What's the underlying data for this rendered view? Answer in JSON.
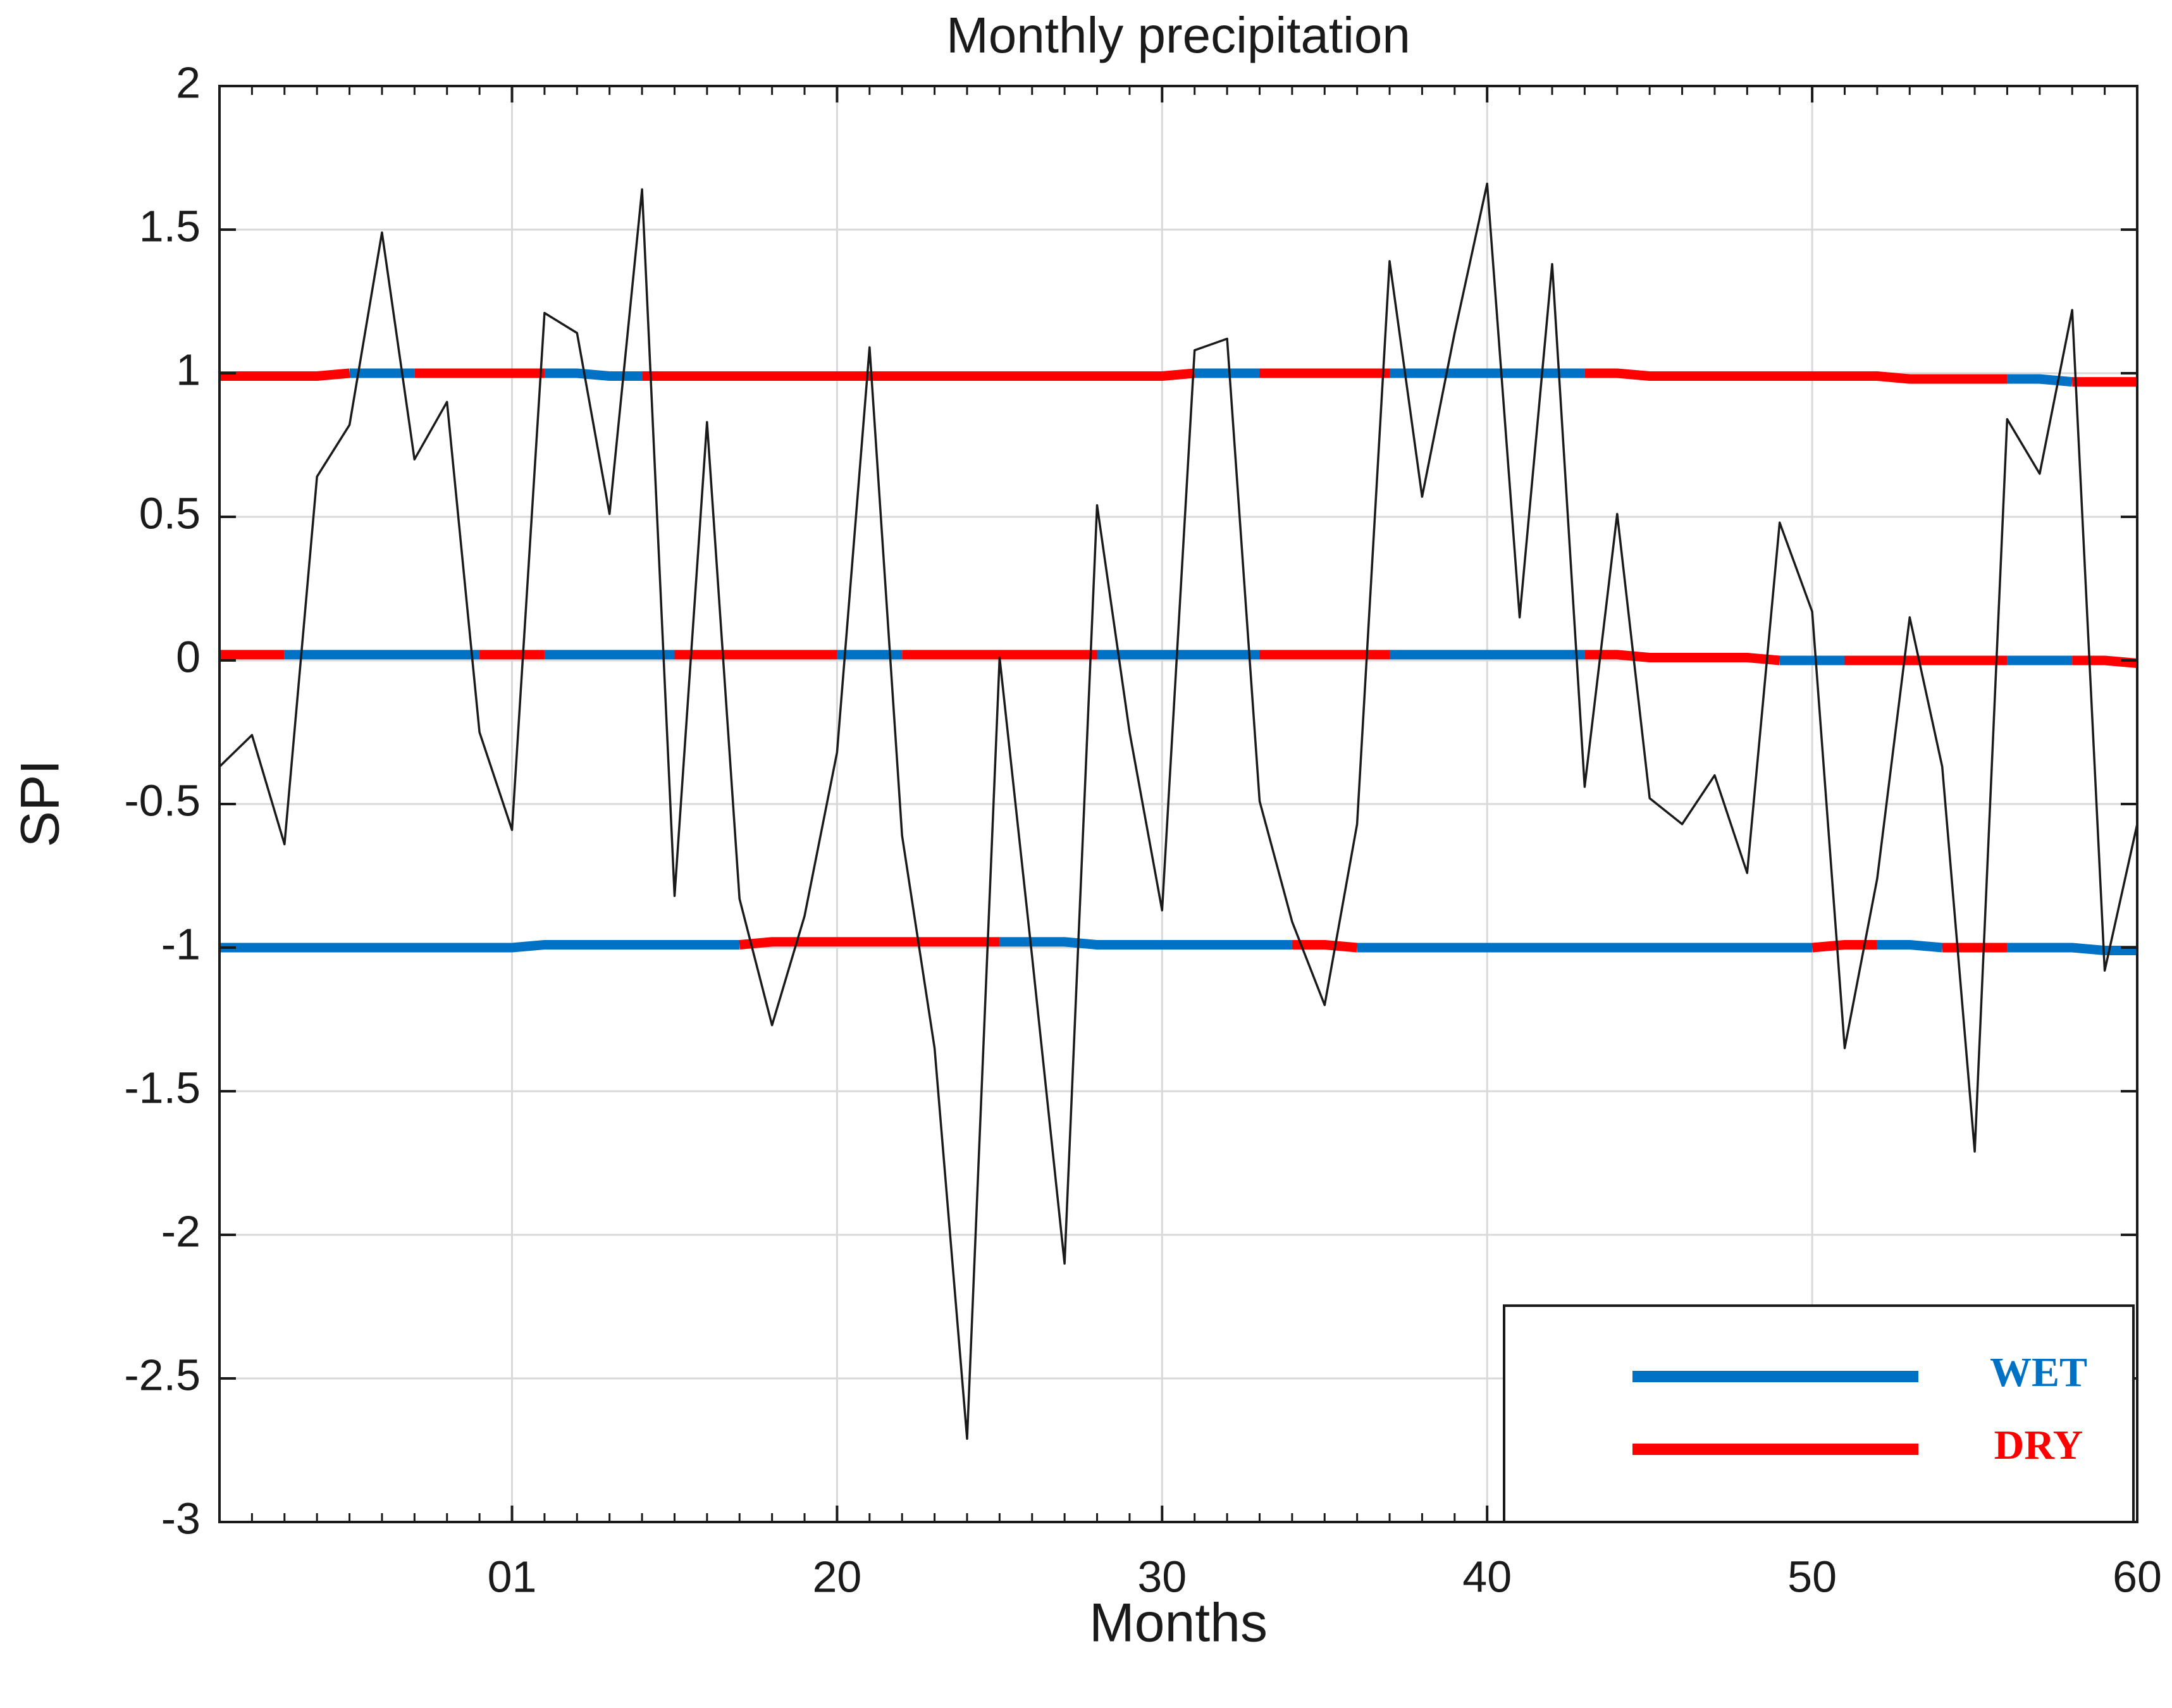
{
  "chart_data": {
    "type": "line",
    "title": "Monthly precipitation",
    "xlabel": "Months",
    "ylabel": "SPI",
    "x": [
      1,
      2,
      3,
      4,
      5,
      6,
      7,
      8,
      9,
      10,
      11,
      12,
      13,
      14,
      15,
      16,
      17,
      18,
      19,
      20,
      21,
      22,
      23,
      24,
      25,
      26,
      27,
      28,
      29,
      30,
      31,
      32,
      33,
      34,
      35,
      36,
      37,
      38,
      39,
      40,
      41,
      42,
      43,
      44,
      45,
      46,
      47,
      48,
      49,
      50,
      51,
      52,
      53,
      54,
      55,
      56,
      57,
      58,
      59,
      60
    ],
    "values": [
      -0.37,
      -0.26,
      -0.64,
      0.64,
      0.82,
      1.49,
      0.7,
      0.9,
      -0.25,
      -0.59,
      1.21,
      1.14,
      0.51,
      1.64,
      -0.82,
      0.83,
      -0.83,
      -1.27,
      -0.89,
      -0.32,
      1.09,
      -0.61,
      -1.35,
      -2.71,
      0.01,
      -1.03,
      -2.1,
      0.54,
      -0.25,
      -0.87,
      1.08,
      1.12,
      -0.49,
      -0.91,
      -1.2,
      -0.57,
      1.39,
      0.57,
      1.14,
      1.66,
      0.15,
      1.38,
      -0.44,
      0.51,
      -0.48,
      -0.57,
      -0.4,
      -0.74,
      0.48,
      0.17,
      -1.35,
      -0.76,
      0.15,
      -0.37,
      -1.71,
      0.84,
      0.65,
      1.22,
      -1.08,
      -0.57
    ],
    "color": "#1a1a1a",
    "series": [
      {
        "name": "WET",
        "color": "#0072c6",
        "values": [
          [
            null,
            null,
            null,
            null,
            1,
            1,
            1,
            null,
            null,
            null,
            1,
            1,
            0.99,
            0.99,
            null,
            null,
            null,
            null,
            null,
            null,
            null,
            null,
            null,
            null,
            null,
            null,
            null,
            null,
            null,
            null,
            1,
            1,
            1,
            null,
            null,
            null,
            1,
            1,
            1,
            1,
            1,
            1,
            1,
            null,
            null,
            null,
            null,
            null,
            null,
            null,
            null,
            null,
            null,
            null,
            null,
            0.98,
            0.98,
            0.97,
            null,
            null
          ],
          [
            null,
            null,
            0.02,
            0.02,
            0.02,
            0.02,
            0.02,
            0.02,
            0.02,
            null,
            0.02,
            0.02,
            0.02,
            0.02,
            0.02,
            null,
            null,
            null,
            null,
            0.02,
            0.02,
            0.02,
            null,
            null,
            null,
            null,
            null,
            0.02,
            0.02,
            0.02,
            0.02,
            0.02,
            0.02,
            null,
            null,
            null,
            0.02,
            0.02,
            0.02,
            0.02,
            0.02,
            0.02,
            0.02,
            null,
            null,
            null,
            null,
            null,
            0,
            0,
            0,
            null,
            null,
            null,
            null,
            0,
            0,
            0,
            null,
            null
          ],
          [
            -1,
            -1,
            -1,
            -1,
            -1,
            -1,
            -1,
            -1,
            -1,
            -1,
            -0.99,
            -0.99,
            -0.99,
            -0.99,
            -0.99,
            -0.99,
            -0.99,
            null,
            null,
            null,
            null,
            null,
            null,
            null,
            -0.98,
            -0.98,
            -0.98,
            -0.99,
            -0.99,
            -0.99,
            -0.99,
            -0.99,
            -0.99,
            -0.99,
            null,
            -1,
            -1,
            -1,
            -1,
            -1,
            -1,
            -1,
            -1,
            -1,
            -1,
            -1,
            -1,
            -1,
            -1,
            -1,
            null,
            -0.99,
            -0.99,
            -1,
            null,
            -1,
            -1,
            -1,
            -1.01,
            -1.01
          ]
        ]
      },
      {
        "name": "DRY",
        "color": "#ff0000",
        "values": [
          [
            0.99,
            0.99,
            0.99,
            0.99,
            1,
            null,
            1,
            1,
            1,
            1,
            1,
            null,
            null,
            0.99,
            0.99,
            0.99,
            0.99,
            0.99,
            0.99,
            0.99,
            0.99,
            0.99,
            0.99,
            0.99,
            0.99,
            0.99,
            0.99,
            0.99,
            0.99,
            0.99,
            1,
            null,
            1,
            1,
            1,
            1,
            1,
            null,
            null,
            null,
            null,
            null,
            1,
            1,
            0.99,
            0.99,
            0.99,
            0.99,
            0.99,
            0.99,
            0.99,
            0.99,
            0.98,
            0.98,
            0.98,
            0.98,
            null,
            0.97,
            0.97,
            0.97
          ],
          [
            0.02,
            0.02,
            0.02,
            null,
            null,
            null,
            null,
            null,
            0.02,
            0.02,
            0.02,
            null,
            null,
            null,
            0.02,
            0.02,
            0.02,
            0.02,
            0.02,
            0.02,
            null,
            0.02,
            0.02,
            0.02,
            0.02,
            0.02,
            0.02,
            0.02,
            null,
            null,
            null,
            null,
            0.02,
            0.02,
            0.02,
            0.02,
            0.02,
            null,
            null,
            null,
            null,
            null,
            0.02,
            0.02,
            0.01,
            0.01,
            0.01,
            0.01,
            0,
            null,
            0,
            0,
            0,
            0,
            0,
            0,
            null,
            0,
            0,
            -0.01
          ],
          [
            null,
            null,
            null,
            null,
            null,
            null,
            null,
            null,
            null,
            null,
            null,
            null,
            null,
            null,
            null,
            null,
            -0.99,
            -0.98,
            -0.98,
            -0.98,
            -0.98,
            -0.98,
            -0.98,
            -0.98,
            -0.98,
            null,
            null,
            null,
            null,
            null,
            null,
            null,
            null,
            -0.99,
            -0.99,
            -1,
            null,
            null,
            null,
            null,
            null,
            null,
            null,
            null,
            null,
            null,
            null,
            null,
            null,
            -1,
            -0.99,
            -0.99,
            null,
            -1,
            -1,
            -1,
            null,
            null,
            null,
            null
          ]
        ]
      }
    ],
    "xlim": [
      1,
      60
    ],
    "xticks": [
      {
        "value": 10,
        "label": "01"
      },
      20,
      30,
      40,
      50,
      60
    ],
    "ylim": [
      -3,
      2
    ],
    "yticks": [
      2,
      1.5,
      1,
      0.5,
      0,
      -0.5,
      -1,
      -1.5,
      -2,
      -2.5,
      -3
    ],
    "grid": true,
    "legend": "lower right"
  }
}
